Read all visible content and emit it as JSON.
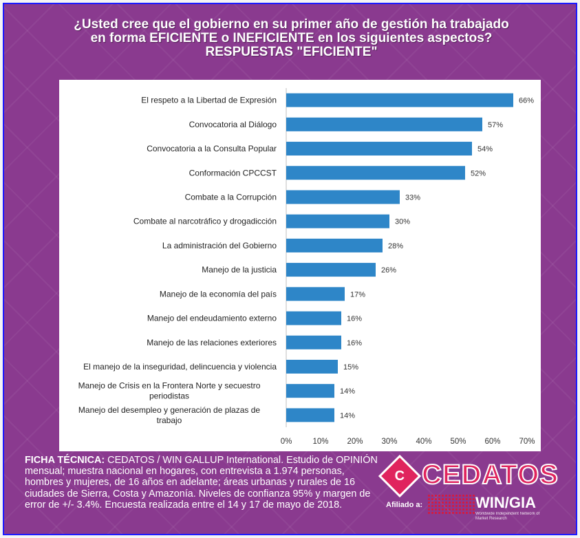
{
  "title_lines": [
    "¿Usted cree que el gobierno en su primer año de gestión ha trabajado",
    "en forma EFICIENTE o INEFICIENTE en los siguientes aspectos?",
    "RESPUESTAS \"EFICIENTE\""
  ],
  "colors": {
    "bar": "#2e86c8",
    "background": "#8a3a8f",
    "panel": "#ffffff"
  },
  "chart_data": {
    "type": "bar",
    "orientation": "horizontal",
    "categories": [
      "El respeto a la Libertad de Expresión",
      "Convocatoria al Diálogo",
      "Convocatoria a la Consulta Popular",
      "Conformación CPCCST",
      "Combate a la Corrupción",
      "Combate al narcotráfico y drogadicción",
      "La administración del Gobierno",
      "Manejo de la justicia",
      "Manejo de la economía del país",
      "Manejo del endeudamiento externo",
      "Manejo de las relaciones exteriores",
      "El manejo de la inseguridad, delincuencia y violencia",
      "Manejo de Crisis en la Frontera Norte y secuestro periodistas",
      "Manejo del desempleo y generación de plazas de trabajo"
    ],
    "category_lines": [
      [
        "El respeto a la Libertad de Expresión"
      ],
      [
        "Convocatoria al Diálogo"
      ],
      [
        "Convocatoria a la Consulta Popular"
      ],
      [
        "Conformación CPCCST"
      ],
      [
        "Combate a la Corrupción"
      ],
      [
        "Combate al narcotráfico y drogadicción"
      ],
      [
        "La administración del Gobierno"
      ],
      [
        "Manejo de la justicia"
      ],
      [
        "Manejo de la economía del país"
      ],
      [
        "Manejo del endeudamiento externo"
      ],
      [
        "Manejo de las relaciones exteriores"
      ],
      [
        "El manejo de la inseguridad, delincuencia y violencia"
      ],
      [
        "Manejo de Crisis en la Frontera Norte y secuestro",
        "periodistas"
      ],
      [
        "Manejo del desempleo y generación de plazas de",
        "trabajo"
      ]
    ],
    "values": [
      66,
      57,
      54,
      52,
      33,
      30,
      28,
      26,
      17,
      16,
      16,
      15,
      14,
      14
    ],
    "value_labels": [
      "66%",
      "57%",
      "54%",
      "52%",
      "33%",
      "30%",
      "28%",
      "26%",
      "17%",
      "16%",
      "16%",
      "15%",
      "14%",
      "14%"
    ],
    "x_ticks": [
      0,
      10,
      20,
      30,
      40,
      50,
      60,
      70
    ],
    "x_tick_labels": [
      "0%",
      "10%",
      "20%",
      "30%",
      "40%",
      "50%",
      "60%",
      "70%"
    ],
    "xlim": [
      0,
      70
    ],
    "grid": false,
    "legend": "none"
  },
  "footer": {
    "lead": "FICHA TÉCNICA:",
    "text": " CEDATOS / WIN GALLUP International. Estudio de OPINIÓN mensual; muestra nacional en hogares, con entrevista a 1.974 personas, hombres y mujeres, de 16 años en adelante; áreas urbanas y rurales de 16 ciudades de Sierra, Costa y Amazonía. Niveles de confianza 95% y margen de error de +/- 3.4%. Encuesta realizada entre el 14 y 17 de mayo de 2018."
  },
  "logo": {
    "name": "CEDATOS",
    "affiliation": "Afiliado a:",
    "partner": "WIN/GIA",
    "partner_sub": "Worldwide Independent Network of Market Research"
  }
}
